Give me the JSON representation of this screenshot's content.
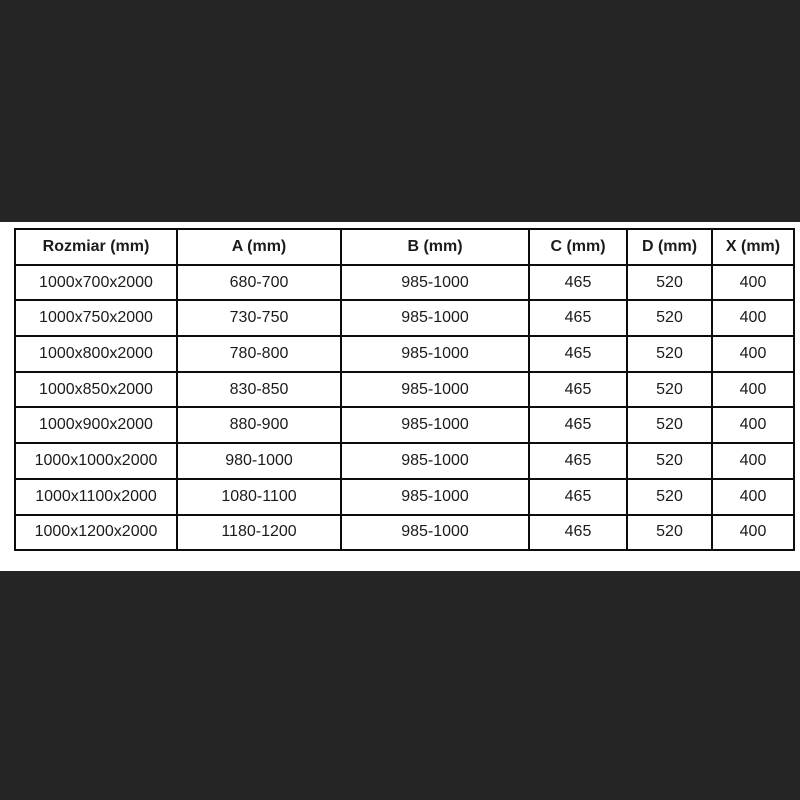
{
  "page": {
    "background_color": "#252525",
    "panel_color": "#ffffff",
    "border_color": "#0c0c0c",
    "text_color": "#1b1b1b"
  },
  "table": {
    "headers": [
      "Rozmiar (mm)",
      "A (mm)",
      "B (mm)",
      "C (mm)",
      "D (mm)",
      "X (mm)"
    ],
    "rows": [
      [
        "1000x700x2000",
        "680-700",
        "985-1000",
        "465",
        "520",
        "400"
      ],
      [
        "1000x750x2000",
        "730-750",
        "985-1000",
        "465",
        "520",
        "400"
      ],
      [
        "1000x800x2000",
        "780-800",
        "985-1000",
        "465",
        "520",
        "400"
      ],
      [
        "1000x850x2000",
        "830-850",
        "985-1000",
        "465",
        "520",
        "400"
      ],
      [
        "1000x900x2000",
        "880-900",
        "985-1000",
        "465",
        "520",
        "400"
      ],
      [
        "1000x1000x2000",
        "980-1000",
        "985-1000",
        "465",
        "520",
        "400"
      ],
      [
        "1000x1100x2000",
        "1080-1100",
        "985-1000",
        "465",
        "520",
        "400"
      ],
      [
        "1000x1200x2000",
        "1180-1200",
        "985-1000",
        "465",
        "520",
        "400"
      ]
    ]
  },
  "chart_data": {
    "type": "table",
    "title": "",
    "columns": [
      "Rozmiar (mm)",
      "A (mm)",
      "B (mm)",
      "C (mm)",
      "D (mm)",
      "X (mm)"
    ],
    "rows": [
      [
        "1000x700x2000",
        "680-700",
        "985-1000",
        "465",
        "520",
        "400"
      ],
      [
        "1000x750x2000",
        "730-750",
        "985-1000",
        "465",
        "520",
        "400"
      ],
      [
        "1000x800x2000",
        "780-800",
        "985-1000",
        "465",
        "520",
        "400"
      ],
      [
        "1000x850x2000",
        "830-850",
        "985-1000",
        "465",
        "520",
        "400"
      ],
      [
        "1000x900x2000",
        "880-900",
        "985-1000",
        "465",
        "520",
        "400"
      ],
      [
        "1000x1000x2000",
        "980-1000",
        "985-1000",
        "465",
        "520",
        "400"
      ],
      [
        "1000x1100x2000",
        "1080-1100",
        "985-1000",
        "465",
        "520",
        "400"
      ],
      [
        "1000x1200x2000",
        "1180-1200",
        "985-1000",
        "465",
        "520",
        "400"
      ]
    ]
  }
}
